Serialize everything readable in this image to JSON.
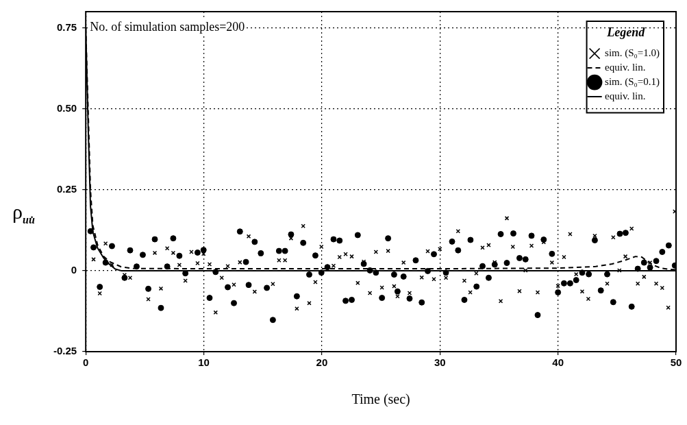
{
  "chart_data": {
    "type": "scatter",
    "xlabel": "Time (sec)",
    "ylabel": "ρ$_{uu̇}$",
    "legend_title": "Legend",
    "annotations": [
      "No. of simulation samples=200"
    ],
    "xlim": [
      0,
      50
    ],
    "xticks": [
      0,
      10,
      20,
      30,
      40,
      50
    ],
    "ylim": [
      -0.25,
      0.8
    ],
    "yticks": [
      -0.25,
      0,
      0.25,
      {
        "value": 0.5,
        "label": "0.50"
      },
      0.75
    ],
    "grid": true,
    "legend": "top right",
    "series": [
      {
        "name": "sim. (S₀=1.0)",
        "type": "scatter",
        "marker": "cross",
        "color": "#000000",
        "x": [
          0.66,
          1.19,
          1.68,
          2.22,
          3.29,
          3.76,
          5.3,
          5.85,
          6.37,
          6.9,
          7.41,
          7.93,
          8.44,
          8.95,
          9.47,
          9.98,
          10.49,
          11.0,
          11.52,
          12.03,
          12.55,
          13.06,
          13.8,
          14.31,
          14.83,
          15.85,
          16.37,
          16.88,
          17.39,
          17.88,
          18.42,
          18.93,
          19.45,
          19.96,
          20.99,
          21.5,
          22.01,
          22.53,
          23.04,
          23.55,
          24.07,
          24.58,
          25.09,
          25.61,
          26.12,
          26.41,
          26.92,
          27.43,
          28.46,
          28.97,
          29.49,
          30.0,
          30.51,
          31.54,
          32.07,
          32.57,
          33.08,
          33.61,
          34.13,
          34.64,
          35.15,
          35.67,
          36.18,
          36.74,
          37.25,
          37.76,
          38.28,
          38.79,
          39.49,
          40.0,
          40.51,
          41.03,
          41.54,
          42.05,
          42.57,
          43.12,
          44.17,
          44.68,
          45.2,
          45.71,
          46.24,
          46.76,
          47.29,
          47.8,
          48.32,
          48.83,
          49.34,
          49.9
        ],
        "values": [
          0.035,
          -0.07,
          0.084,
          0.018,
          -0.013,
          -0.022,
          -0.088,
          0.055,
          -0.055,
          0.069,
          0.055,
          0.018,
          -0.031,
          0.058,
          0.023,
          0.052,
          0.02,
          -0.129,
          -0.022,
          0.014,
          -0.043,
          0.026,
          0.106,
          -0.065,
          0.051,
          -0.041,
          0.032,
          0.032,
          0.1,
          -0.117,
          0.138,
          -0.1,
          -0.035,
          0.074,
          0.015,
          0.042,
          0.051,
          0.044,
          -0.038,
          0.028,
          -0.069,
          0.058,
          -0.052,
          0.061,
          -0.048,
          -0.079,
          0.025,
          -0.069,
          -0.021,
          0.06,
          -0.026,
          0.067,
          -0.022,
          0.122,
          -0.031,
          -0.067,
          -0.008,
          0.071,
          0.079,
          0.026,
          -0.094,
          0.162,
          0.074,
          -0.063,
          0.001,
          0.077,
          -0.067,
          0.088,
          0.025,
          -0.047,
          0.042,
          0.113,
          -0.011,
          -0.064,
          -0.087,
          0.108,
          -0.04,
          0.103,
          0.001,
          0.044,
          0.13,
          -0.04,
          -0.019,
          0.025,
          -0.04,
          -0.053,
          -0.114,
          0.183
        ]
      },
      {
        "name": "equiv. lin.",
        "type": "line",
        "marker": "none",
        "line_style": "dashed",
        "color": "#000000",
        "x": [
          0,
          0.2,
          0.4,
          0.6,
          1,
          1.5,
          2,
          3,
          4,
          10,
          20,
          30,
          40,
          43.2,
          44.6,
          45.65,
          46.57,
          47.1,
          47.6,
          48.1,
          48.7,
          49.5,
          50
        ],
        "values": [
          0.75,
          0.5,
          0.25,
          0.14,
          0.08,
          0.045,
          0.028,
          0.012,
          0.007,
          0.006,
          0.006,
          0.006,
          0.008,
          0.013,
          0.021,
          0.032,
          0.044,
          0.042,
          0.028,
          0.017,
          0.008,
          0.004,
          0.003
        ]
      },
      {
        "name": "sim. (S₀=0.1)",
        "type": "scatter",
        "marker": "circle",
        "color": "#000000",
        "x": [
          0.41,
          0.66,
          1.19,
          1.68,
          2.22,
          3.29,
          3.76,
          4.31,
          4.83,
          5.3,
          5.85,
          6.37,
          6.9,
          7.41,
          7.93,
          8.44,
          9.47,
          9.98,
          10.49,
          11.0,
          12.03,
          12.55,
          13.06,
          13.57,
          13.8,
          14.31,
          14.83,
          15.34,
          15.85,
          16.37,
          16.88,
          17.39,
          17.88,
          18.42,
          18.93,
          19.45,
          19.96,
          20.47,
          20.99,
          21.5,
          22.01,
          22.53,
          23.04,
          23.55,
          24.07,
          24.58,
          25.09,
          25.61,
          26.12,
          26.41,
          26.92,
          27.43,
          27.95,
          28.46,
          28.97,
          29.49,
          30.51,
          31.03,
          31.54,
          32.07,
          32.59,
          33.1,
          33.61,
          34.13,
          34.64,
          35.15,
          35.67,
          36.22,
          36.74,
          37.25,
          37.76,
          38.28,
          38.79,
          39.49,
          40.0,
          40.51,
          41.03,
          41.54,
          42.05,
          42.61,
          43.12,
          43.63,
          44.17,
          44.68,
          45.24,
          45.73,
          46.24,
          46.76,
          47.29,
          47.8,
          48.32,
          48.83,
          49.38,
          49.9
        ],
        "values": [
          0.122,
          0.072,
          -0.05,
          0.025,
          0.076,
          -0.022,
          0.063,
          0.013,
          0.049,
          -0.056,
          0.097,
          -0.115,
          0.013,
          0.1,
          0.046,
          -0.008,
          0.056,
          0.064,
          -0.084,
          -0.004,
          -0.051,
          -0.1,
          0.121,
          0.027,
          -0.044,
          0.089,
          0.054,
          -0.053,
          -0.152,
          0.061,
          0.061,
          0.112,
          -0.079,
          0.086,
          -0.012,
          0.047,
          -0.006,
          0.011,
          0.097,
          0.093,
          -0.093,
          -0.09,
          0.11,
          0.021,
          0.001,
          -0.006,
          -0.084,
          0.1,
          -0.012,
          -0.064,
          -0.018,
          -0.086,
          0.032,
          -0.098,
          -0.001,
          0.051,
          -0.006,
          0.09,
          0.063,
          -0.09,
          0.095,
          -0.049,
          0.014,
          -0.022,
          0.019,
          0.113,
          0.024,
          0.115,
          0.039,
          0.035,
          0.108,
          -0.137,
          0.096,
          0.052,
          -0.067,
          -0.039,
          -0.039,
          -0.029,
          -0.006,
          -0.011,
          0.094,
          -0.061,
          -0.011,
          -0.097,
          0.114,
          0.117,
          -0.111,
          0.006,
          0.025,
          0.01,
          0.03,
          0.058,
          0.078,
          0.016
        ]
      },
      {
        "name": "equiv. lin.",
        "type": "line",
        "marker": "none",
        "line_style": "solid",
        "color": "#000000",
        "x": [
          0,
          0.2,
          0.4,
          0.6,
          1,
          1.5,
          2,
          2.5,
          3,
          50
        ],
        "values": [
          0.75,
          0.45,
          0.2,
          0.12,
          0.07,
          0.04,
          0.02,
          0.005,
          0,
          0
        ]
      }
    ]
  }
}
